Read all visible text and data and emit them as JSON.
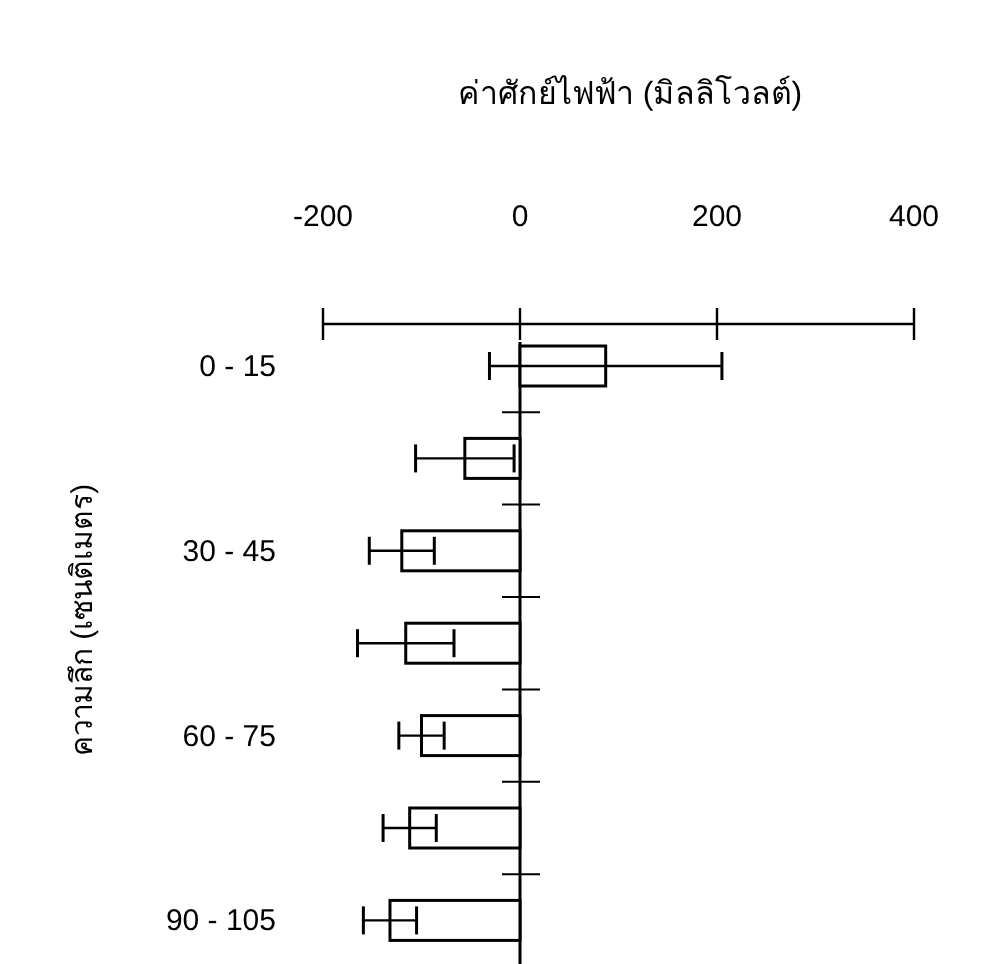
{
  "chart_data": {
    "type": "bar",
    "orientation": "horizontal",
    "xlabel": "ค่าศักย์ไฟฟ้า (มิลลิโวลต์)",
    "ylabel": "ความลึก (เซนติเมตร)",
    "categories": [
      "0 - 15",
      null,
      "30 - 45",
      null,
      "60 - 75",
      null,
      "90 - 105"
    ],
    "values": [
      87,
      -56,
      -120,
      -116,
      -100,
      -112,
      -132
    ],
    "errors": [
      118,
      50,
      33,
      49,
      23,
      27,
      27
    ],
    "color": "#ffffff",
    "xlim": [
      -200,
      400
    ],
    "xticks": [
      -200,
      0,
      200,
      400
    ]
  }
}
